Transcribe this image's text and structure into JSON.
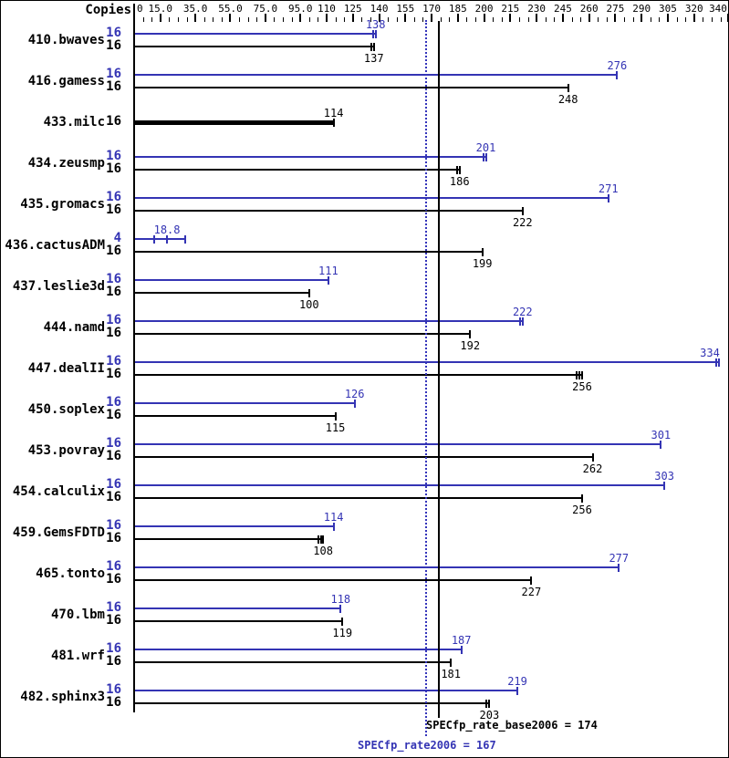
{
  "header": {
    "copies_label": "Copies"
  },
  "colors": {
    "peak": "#3434b4",
    "base": "#000000",
    "dotted_line": "#3434bb"
  },
  "axis": {
    "min": 0,
    "max": 340,
    "minor_step": 5,
    "labeled_ticks": [
      {
        "v": 0,
        "label": "0"
      },
      {
        "v": 15,
        "label": "15.0"
      },
      {
        "v": 35,
        "label": "35.0"
      },
      {
        "v": 55,
        "label": "55.0"
      },
      {
        "v": 75,
        "label": "75.0"
      },
      {
        "v": 95,
        "label": "95.0"
      },
      {
        "v": 110,
        "label": "110"
      },
      {
        "v": 125,
        "label": "125"
      },
      {
        "v": 140,
        "label": "140"
      },
      {
        "v": 155,
        "label": "155"
      },
      {
        "v": 170,
        "label": "170"
      },
      {
        "v": 185,
        "label": "185"
      },
      {
        "v": 200,
        "label": "200"
      },
      {
        "v": 215,
        "label": "215"
      },
      {
        "v": 230,
        "label": "230"
      },
      {
        "v": 245,
        "label": "245"
      },
      {
        "v": 260,
        "label": "260"
      },
      {
        "v": 275,
        "label": "275"
      },
      {
        "v": 290,
        "label": "290"
      },
      {
        "v": 305,
        "label": "305"
      },
      {
        "v": 320,
        "label": "320"
      },
      {
        "v": 340,
        "label": "340"
      }
    ]
  },
  "footer": {
    "base_text": "SPECfp_rate_base2006 = 174",
    "peak_text": "SPECfp_rate2006 = 167"
  },
  "chart_data": {
    "type": "bar",
    "orientation": "horizontal",
    "title": "",
    "xlabel": "",
    "ylabel": "",
    "xlim": [
      0,
      340
    ],
    "grid": false,
    "x_axis_tick_labels": [
      "0",
      "15.0",
      "35.0",
      "55.0",
      "75.0",
      "95.0",
      "110",
      "125",
      "140",
      "155",
      "170",
      "185",
      "200",
      "215",
      "230",
      "245",
      "260",
      "275",
      "290",
      "305",
      "320",
      "340"
    ],
    "reference_lines": [
      {
        "name": "SPECfp_rate_base2006",
        "value": 174,
        "style": "solid",
        "series": "base"
      },
      {
        "name": "SPECfp_rate2006",
        "value": 167,
        "style": "dotted",
        "series": "peak"
      }
    ],
    "rows": [
      {
        "benchmark": "410.bwaves",
        "bars": [
          {
            "series": "peak",
            "copies": "16",
            "value": 138,
            "label": "138",
            "marks": [
              136.5,
              138
            ]
          },
          {
            "series": "base",
            "copies": "16",
            "value": 137,
            "label": "137",
            "marks": [
              135.5,
              137
            ]
          }
        ]
      },
      {
        "benchmark": "416.gamess",
        "bars": [
          {
            "series": "peak",
            "copies": "16",
            "value": 276,
            "label": "276",
            "marks": [
              276
            ]
          },
          {
            "series": "base",
            "copies": "16",
            "value": 248,
            "label": "248",
            "marks": [
              248
            ]
          }
        ]
      },
      {
        "benchmark": "433.milc",
        "bars": [
          {
            "series": "base",
            "copies": "16",
            "value": 114,
            "label": "114",
            "marks": [
              114
            ],
            "thick": true,
            "label_above": true
          }
        ]
      },
      {
        "benchmark": "434.zeusmp",
        "bars": [
          {
            "series": "peak",
            "copies": "16",
            "value": 201,
            "label": "201",
            "marks": [
              199.5,
              201
            ]
          },
          {
            "series": "base",
            "copies": "16",
            "value": 186,
            "label": "186",
            "marks": [
              184.5,
              186
            ]
          }
        ]
      },
      {
        "benchmark": "435.gromacs",
        "bars": [
          {
            "series": "peak",
            "copies": "16",
            "value": 271,
            "label": "271",
            "marks": [
              271
            ]
          },
          {
            "series": "base",
            "copies": "16",
            "value": 222,
            "label": "222",
            "marks": [
              222
            ]
          }
        ]
      },
      {
        "benchmark": "436.cactusADM",
        "bars": [
          {
            "series": "peak",
            "copies": "4",
            "value": 18.8,
            "label": "18.8",
            "marks": [
              11.5,
              18.8,
              29.2
            ],
            "bar_to": 29.2
          },
          {
            "series": "base",
            "copies": "16",
            "value": 199,
            "label": "199",
            "marks": [
              199
            ]
          }
        ]
      },
      {
        "benchmark": "437.leslie3d",
        "bars": [
          {
            "series": "peak",
            "copies": "16",
            "value": 111,
            "label": "111",
            "marks": [
              111
            ]
          },
          {
            "series": "base",
            "copies": "16",
            "value": 100,
            "label": "100",
            "marks": [
              100
            ]
          }
        ]
      },
      {
        "benchmark": "444.namd",
        "bars": [
          {
            "series": "peak",
            "copies": "16",
            "value": 222,
            "label": "222",
            "marks": [
              220.5,
              222
            ]
          },
          {
            "series": "base",
            "copies": "16",
            "value": 192,
            "label": "192",
            "marks": [
              192
            ]
          }
        ]
      },
      {
        "benchmark": "447.dealII",
        "bars": [
          {
            "series": "peak",
            "copies": "16",
            "value": 334,
            "label": "334",
            "marks": [
              332.5,
              334
            ]
          },
          {
            "series": "base",
            "copies": "16",
            "value": 256,
            "label": "256",
            "marks": [
              253,
              254.5,
              256
            ]
          }
        ]
      },
      {
        "benchmark": "450.soplex",
        "bars": [
          {
            "series": "peak",
            "copies": "16",
            "value": 126,
            "label": "126",
            "marks": [
              126
            ]
          },
          {
            "series": "base",
            "copies": "16",
            "value": 115,
            "label": "115",
            "marks": [
              115
            ]
          }
        ]
      },
      {
        "benchmark": "453.povray",
        "bars": [
          {
            "series": "peak",
            "copies": "16",
            "value": 301,
            "label": "301",
            "marks": [
              301
            ]
          },
          {
            "series": "base",
            "copies": "16",
            "value": 262,
            "label": "262",
            "marks": [
              262
            ]
          }
        ]
      },
      {
        "benchmark": "454.calculix",
        "bars": [
          {
            "series": "peak",
            "copies": "16",
            "value": 303,
            "label": "303",
            "marks": [
              303
            ]
          },
          {
            "series": "base",
            "copies": "16",
            "value": 256,
            "label": "256",
            "marks": [
              256
            ]
          }
        ]
      },
      {
        "benchmark": "459.GemsFDTD",
        "bars": [
          {
            "series": "peak",
            "copies": "16",
            "value": 114,
            "label": "114",
            "marks": [
              114
            ]
          },
          {
            "series": "base",
            "copies": "16",
            "value": 108,
            "label": "108",
            "marks": [
              105.5,
              107,
              108
            ]
          }
        ]
      },
      {
        "benchmark": "465.tonto",
        "bars": [
          {
            "series": "peak",
            "copies": "16",
            "value": 277,
            "label": "277",
            "marks": [
              277
            ]
          },
          {
            "series": "base",
            "copies": "16",
            "value": 227,
            "label": "227",
            "marks": [
              227
            ]
          }
        ]
      },
      {
        "benchmark": "470.lbm",
        "bars": [
          {
            "series": "peak",
            "copies": "16",
            "value": 118,
            "label": "118",
            "marks": [
              118
            ]
          },
          {
            "series": "base",
            "copies": "16",
            "value": 119,
            "label": "119",
            "marks": [
              119
            ]
          }
        ]
      },
      {
        "benchmark": "481.wrf",
        "bars": [
          {
            "series": "peak",
            "copies": "16",
            "value": 187,
            "label": "187",
            "marks": [
              187
            ]
          },
          {
            "series": "base",
            "copies": "16",
            "value": 181,
            "label": "181",
            "marks": [
              181
            ]
          }
        ]
      },
      {
        "benchmark": "482.sphinx3",
        "bars": [
          {
            "series": "peak",
            "copies": "16",
            "value": 219,
            "label": "219",
            "marks": [
              219
            ]
          },
          {
            "series": "base",
            "copies": "16",
            "value": 203,
            "label": "203",
            "marks": [
              201.5,
              203
            ]
          }
        ]
      }
    ]
  }
}
